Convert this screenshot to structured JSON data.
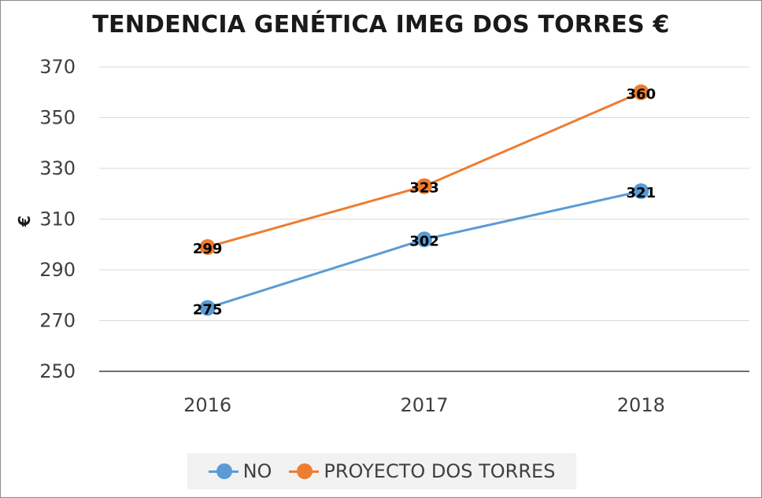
{
  "chart_data": {
    "type": "line",
    "title": "TENDENCIA GENÉTICA IMEG DOS TORRES €",
    "xlabel": "",
    "ylabel": "€",
    "categories": [
      "2016",
      "2017",
      "2018"
    ],
    "yticks": [
      "370",
      "350",
      "330",
      "310",
      "290",
      "270",
      "250"
    ],
    "ylim": [
      250,
      370
    ],
    "grid": true,
    "legend_position": "bottom",
    "series": [
      {
        "name": "NO",
        "values": [
          275,
          302,
          321
        ],
        "color": "#5b9bd5"
      },
      {
        "name": "PROYECTO DOS TORRES",
        "values": [
          299,
          323,
          360
        ],
        "color": "#ed7d31"
      }
    ]
  }
}
